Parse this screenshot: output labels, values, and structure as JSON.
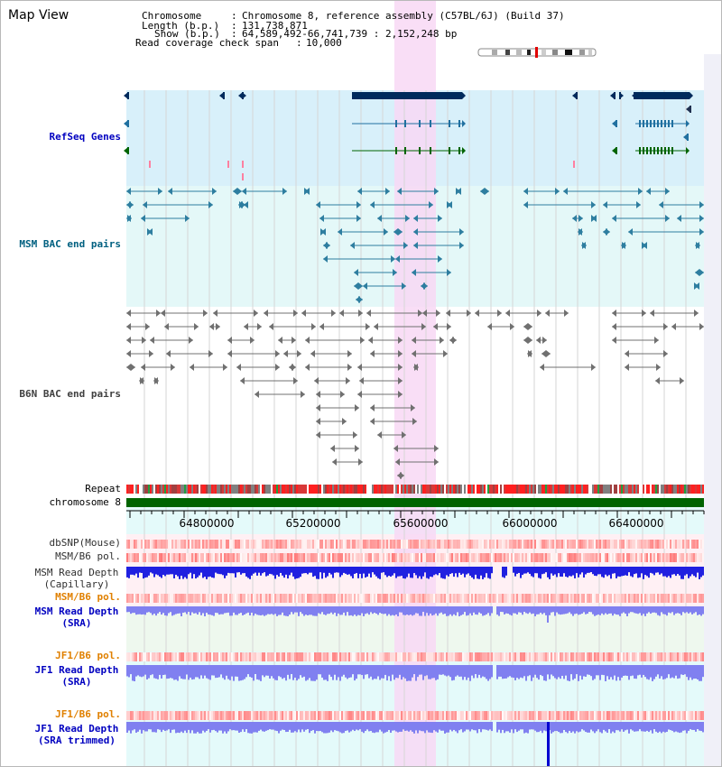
{
  "title": "Map View",
  "info": {
    "chromosome_key": "Chromosome",
    "chromosome_value": "Chromosome 8, reference assembly (C57BL/6J) (Build 37)",
    "length_key": "Length (b.p.)",
    "length_value": "131,738,871",
    "show_key": "Show (b.p.)",
    "show_value": "64,589,492-66,741,739 : 2,152,248 bp",
    "span_key": "Read coverage check span",
    "span_value": "10,000"
  },
  "tracks": {
    "refseq": "RefSeq Genes",
    "msm_bac": "MSM BAC end pairs",
    "b6n_bac": "B6N BAC end pairs",
    "repeat": "Repeat",
    "chromosome": "chromosome 8",
    "dbsnp": "dbSNP(Mouse)",
    "msm_b6_pol_1": "MSM/B6 pol.",
    "msm_depth_cap_1": "MSM Read Depth",
    "msm_depth_cap_2": "(Capillary)",
    "msm_b6_pol_2": "MSM/B6 pol.",
    "msm_depth_sra_1": "MSM Read Depth",
    "msm_depth_sra_2": "(SRA)",
    "jf1_b6_pol_1": "JF1/B6 pol.",
    "jf1_depth_sra_1": "JF1 Read Depth",
    "jf1_depth_sra_2": "(SRA)",
    "jf1_b6_pol_2": "JF1/B6 pol.",
    "jf1_depth_trim_1": "JF1 Read Depth",
    "jf1_depth_trim_2": "(SRA trimmed)"
  },
  "axis": {
    "ticks": [
      "64800000",
      "65200000",
      "65600000",
      "66000000",
      "66400000"
    ]
  },
  "colors": {
    "refseq_label": "#0000c0",
    "msm_label": "#006080",
    "b6n_label": "#404040",
    "pol_label_orange": "#e08000",
    "depth_label_blue": "#0000c0",
    "highlight": "#f8d8f4",
    "refseq_bg": "#d8f0fa",
    "msm_bg": "#e4f8f8",
    "chromosome_bar": "#006400",
    "gene_dark": "#002a5c",
    "gene_mid": "#2070a0",
    "gene_green": "#006400",
    "depth_dark": "#2020e0",
    "depth_light": "#8080f0",
    "snp_red": "#e83030"
  },
  "icons": {
    "ideogram": "chromosome-ideogram-icon"
  }
}
